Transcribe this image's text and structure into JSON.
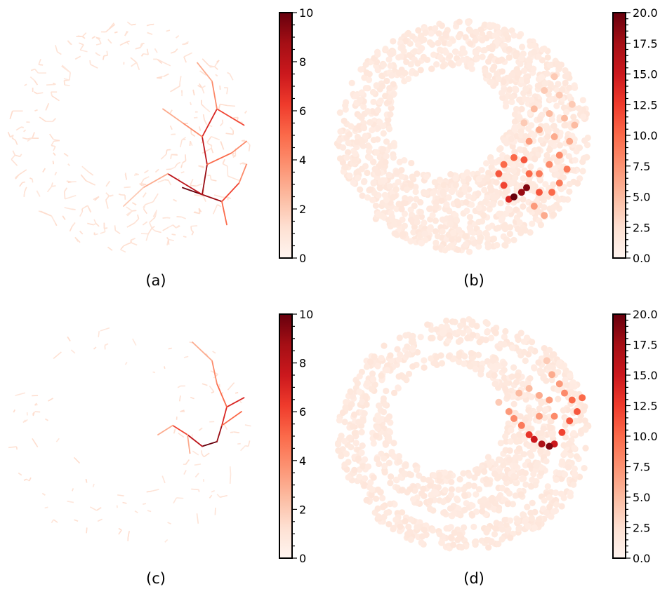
{
  "chart_data": [
    {
      "panel": "(a)",
      "type": "network-edges",
      "colormap": "Reds",
      "colorbar": {
        "min": 0,
        "max": 10,
        "ticks": [
          "0",
          "2",
          "4",
          "6",
          "8",
          "10"
        ]
      },
      "hotspot_edges": [
        {
          "from": [
            0.72,
            0.72
          ],
          "to": [
            0.8,
            0.75
          ],
          "value": 10
        },
        {
          "from": [
            0.8,
            0.75
          ],
          "to": [
            0.88,
            0.78
          ],
          "value": 9
        },
        {
          "from": [
            0.8,
            0.75
          ],
          "to": [
            0.82,
            0.62
          ],
          "value": 9
        },
        {
          "from": [
            0.82,
            0.62
          ],
          "to": [
            0.8,
            0.5
          ],
          "value": 8
        },
        {
          "from": [
            0.8,
            0.5
          ],
          "to": [
            0.86,
            0.38
          ],
          "value": 7
        },
        {
          "from": [
            0.86,
            0.38
          ],
          "to": [
            0.97,
            0.45
          ],
          "value": 6
        },
        {
          "from": [
            0.8,
            0.75
          ],
          "to": [
            0.66,
            0.66
          ],
          "value": 8
        },
        {
          "from": [
            0.88,
            0.78
          ],
          "to": [
            0.95,
            0.7
          ],
          "value": 6
        },
        {
          "from": [
            0.82,
            0.62
          ],
          "to": [
            0.92,
            0.57
          ],
          "value": 5
        },
        {
          "from": [
            0.8,
            0.5
          ],
          "to": [
            0.72,
            0.44
          ],
          "value": 4
        },
        {
          "from": [
            0.86,
            0.38
          ],
          "to": [
            0.84,
            0.26
          ],
          "value": 4
        },
        {
          "from": [
            0.88,
            0.78
          ],
          "to": [
            0.9,
            0.88
          ],
          "value": 5
        },
        {
          "from": [
            0.92,
            0.57
          ],
          "to": [
            0.98,
            0.52
          ],
          "value": 4
        },
        {
          "from": [
            0.72,
            0.44
          ],
          "to": [
            0.64,
            0.38
          ],
          "value": 3
        },
        {
          "from": [
            0.66,
            0.66
          ],
          "to": [
            0.56,
            0.72
          ],
          "value": 3
        },
        {
          "from": [
            0.56,
            0.72
          ],
          "to": [
            0.48,
            0.8
          ],
          "value": 2
        },
        {
          "from": [
            0.84,
            0.26
          ],
          "to": [
            0.78,
            0.18
          ],
          "value": 3
        },
        {
          "from": [
            0.95,
            0.7
          ],
          "to": [
            0.98,
            0.62
          ],
          "value": 4
        }
      ]
    },
    {
      "panel": "(b)",
      "type": "network-nodes",
      "colormap": "Reds",
      "colorbar": {
        "min": 0,
        "max": 20,
        "ticks": [
          "0.0",
          "2.5",
          "5.0",
          "7.5",
          "10.0",
          "12.5",
          "15.0",
          "17.5",
          "20.0"
        ]
      },
      "hotspot_nodes": [
        {
          "x": 0.7,
          "y": 0.76,
          "value": 20
        },
        {
          "x": 0.73,
          "y": 0.74,
          "value": 18
        },
        {
          "x": 0.75,
          "y": 0.72,
          "value": 19
        },
        {
          "x": 0.68,
          "y": 0.77,
          "value": 14
        },
        {
          "x": 0.66,
          "y": 0.71,
          "value": 12
        },
        {
          "x": 0.64,
          "y": 0.66,
          "value": 11
        },
        {
          "x": 0.66,
          "y": 0.62,
          "value": 10
        },
        {
          "x": 0.7,
          "y": 0.59,
          "value": 10
        },
        {
          "x": 0.74,
          "y": 0.6,
          "value": 11
        },
        {
          "x": 0.76,
          "y": 0.66,
          "value": 10
        },
        {
          "x": 0.8,
          "y": 0.74,
          "value": 11
        },
        {
          "x": 0.85,
          "y": 0.74,
          "value": 10
        },
        {
          "x": 0.88,
          "y": 0.7,
          "value": 9
        },
        {
          "x": 0.91,
          "y": 0.64,
          "value": 9
        },
        {
          "x": 0.8,
          "y": 0.66,
          "value": 9
        },
        {
          "x": 0.84,
          "y": 0.62,
          "value": 8
        },
        {
          "x": 0.88,
          "y": 0.58,
          "value": 8
        },
        {
          "x": 0.78,
          "y": 0.8,
          "value": 7
        },
        {
          "x": 0.82,
          "y": 0.84,
          "value": 6
        },
        {
          "x": 0.76,
          "y": 0.52,
          "value": 7
        },
        {
          "x": 0.8,
          "y": 0.47,
          "value": 6
        },
        {
          "x": 0.86,
          "y": 0.5,
          "value": 6
        },
        {
          "x": 0.92,
          "y": 0.52,
          "value": 6
        },
        {
          "x": 0.84,
          "y": 0.4,
          "value": 5
        },
        {
          "x": 0.9,
          "y": 0.42,
          "value": 5
        },
        {
          "x": 0.78,
          "y": 0.38,
          "value": 5
        },
        {
          "x": 0.94,
          "y": 0.45,
          "value": 5
        },
        {
          "x": 0.88,
          "y": 0.32,
          "value": 4
        },
        {
          "x": 0.82,
          "y": 0.3,
          "value": 4
        },
        {
          "x": 0.93,
          "y": 0.36,
          "value": 4
        },
        {
          "x": 0.86,
          "y": 0.24,
          "value": 4
        },
        {
          "x": 0.74,
          "y": 0.44,
          "value": 4
        }
      ]
    },
    {
      "panel": "(c)",
      "type": "network-edges",
      "colormap": "Reds",
      "colorbar": {
        "min": 0,
        "max": 10,
        "ticks": [
          "0",
          "2",
          "4",
          "6",
          "8",
          "10"
        ]
      },
      "hotspot_edges": [
        {
          "from": [
            0.8,
            0.55
          ],
          "to": [
            0.86,
            0.53
          ],
          "value": 10
        },
        {
          "from": [
            0.86,
            0.53
          ],
          "to": [
            0.88,
            0.46
          ],
          "value": 9
        },
        {
          "from": [
            0.8,
            0.55
          ],
          "to": [
            0.74,
            0.5
          ],
          "value": 8
        },
        {
          "from": [
            0.88,
            0.46
          ],
          "to": [
            0.9,
            0.38
          ],
          "value": 7
        },
        {
          "from": [
            0.9,
            0.38
          ],
          "to": [
            0.97,
            0.34
          ],
          "value": 7
        },
        {
          "from": [
            0.74,
            0.5
          ],
          "to": [
            0.68,
            0.46
          ],
          "value": 6
        },
        {
          "from": [
            0.88,
            0.46
          ],
          "to": [
            0.96,
            0.4
          ],
          "value": 5
        },
        {
          "from": [
            0.9,
            0.38
          ],
          "to": [
            0.86,
            0.28
          ],
          "value": 5
        },
        {
          "from": [
            0.86,
            0.28
          ],
          "to": [
            0.84,
            0.18
          ],
          "value": 4
        },
        {
          "from": [
            0.68,
            0.46
          ],
          "to": [
            0.62,
            0.5
          ],
          "value": 3
        },
        {
          "from": [
            0.74,
            0.5
          ],
          "to": [
            0.75,
            0.58
          ],
          "value": 3
        },
        {
          "from": [
            0.84,
            0.18
          ],
          "to": [
            0.76,
            0.1
          ],
          "value": 3
        }
      ]
    },
    {
      "panel": "(d)",
      "type": "network-nodes",
      "colormap": "Reds",
      "colorbar": {
        "min": 0,
        "max": 20,
        "ticks": [
          "0.0",
          "2.5",
          "5.0",
          "7.5",
          "10.0",
          "12.5",
          "15.0",
          "17.5",
          "20.0"
        ]
      },
      "hotspot_nodes": [
        {
          "x": 0.84,
          "y": 0.55,
          "value": 19
        },
        {
          "x": 0.81,
          "y": 0.54,
          "value": 17
        },
        {
          "x": 0.78,
          "y": 0.52,
          "value": 15
        },
        {
          "x": 0.86,
          "y": 0.54,
          "value": 15
        },
        {
          "x": 0.76,
          "y": 0.5,
          "value": 13
        },
        {
          "x": 0.89,
          "y": 0.49,
          "value": 12
        },
        {
          "x": 0.92,
          "y": 0.44,
          "value": 11
        },
        {
          "x": 0.95,
          "y": 0.4,
          "value": 11
        },
        {
          "x": 0.93,
          "y": 0.35,
          "value": 10
        },
        {
          "x": 0.97,
          "y": 0.34,
          "value": 10
        },
        {
          "x": 0.73,
          "y": 0.46,
          "value": 9
        },
        {
          "x": 0.7,
          "y": 0.43,
          "value": 8
        },
        {
          "x": 0.68,
          "y": 0.4,
          "value": 7
        },
        {
          "x": 0.9,
          "y": 0.32,
          "value": 8
        },
        {
          "x": 0.88,
          "y": 0.28,
          "value": 7
        },
        {
          "x": 0.85,
          "y": 0.24,
          "value": 6
        },
        {
          "x": 0.84,
          "y": 0.35,
          "value": 7
        },
        {
          "x": 0.8,
          "y": 0.33,
          "value": 6
        },
        {
          "x": 0.76,
          "y": 0.3,
          "value": 5
        },
        {
          "x": 0.72,
          "y": 0.32,
          "value": 5
        },
        {
          "x": 0.86,
          "y": 0.42,
          "value": 8
        },
        {
          "x": 0.8,
          "y": 0.42,
          "value": 7
        },
        {
          "x": 0.83,
          "y": 0.18,
          "value": 4
        },
        {
          "x": 0.64,
          "y": 0.36,
          "value": 4
        }
      ]
    }
  ]
}
